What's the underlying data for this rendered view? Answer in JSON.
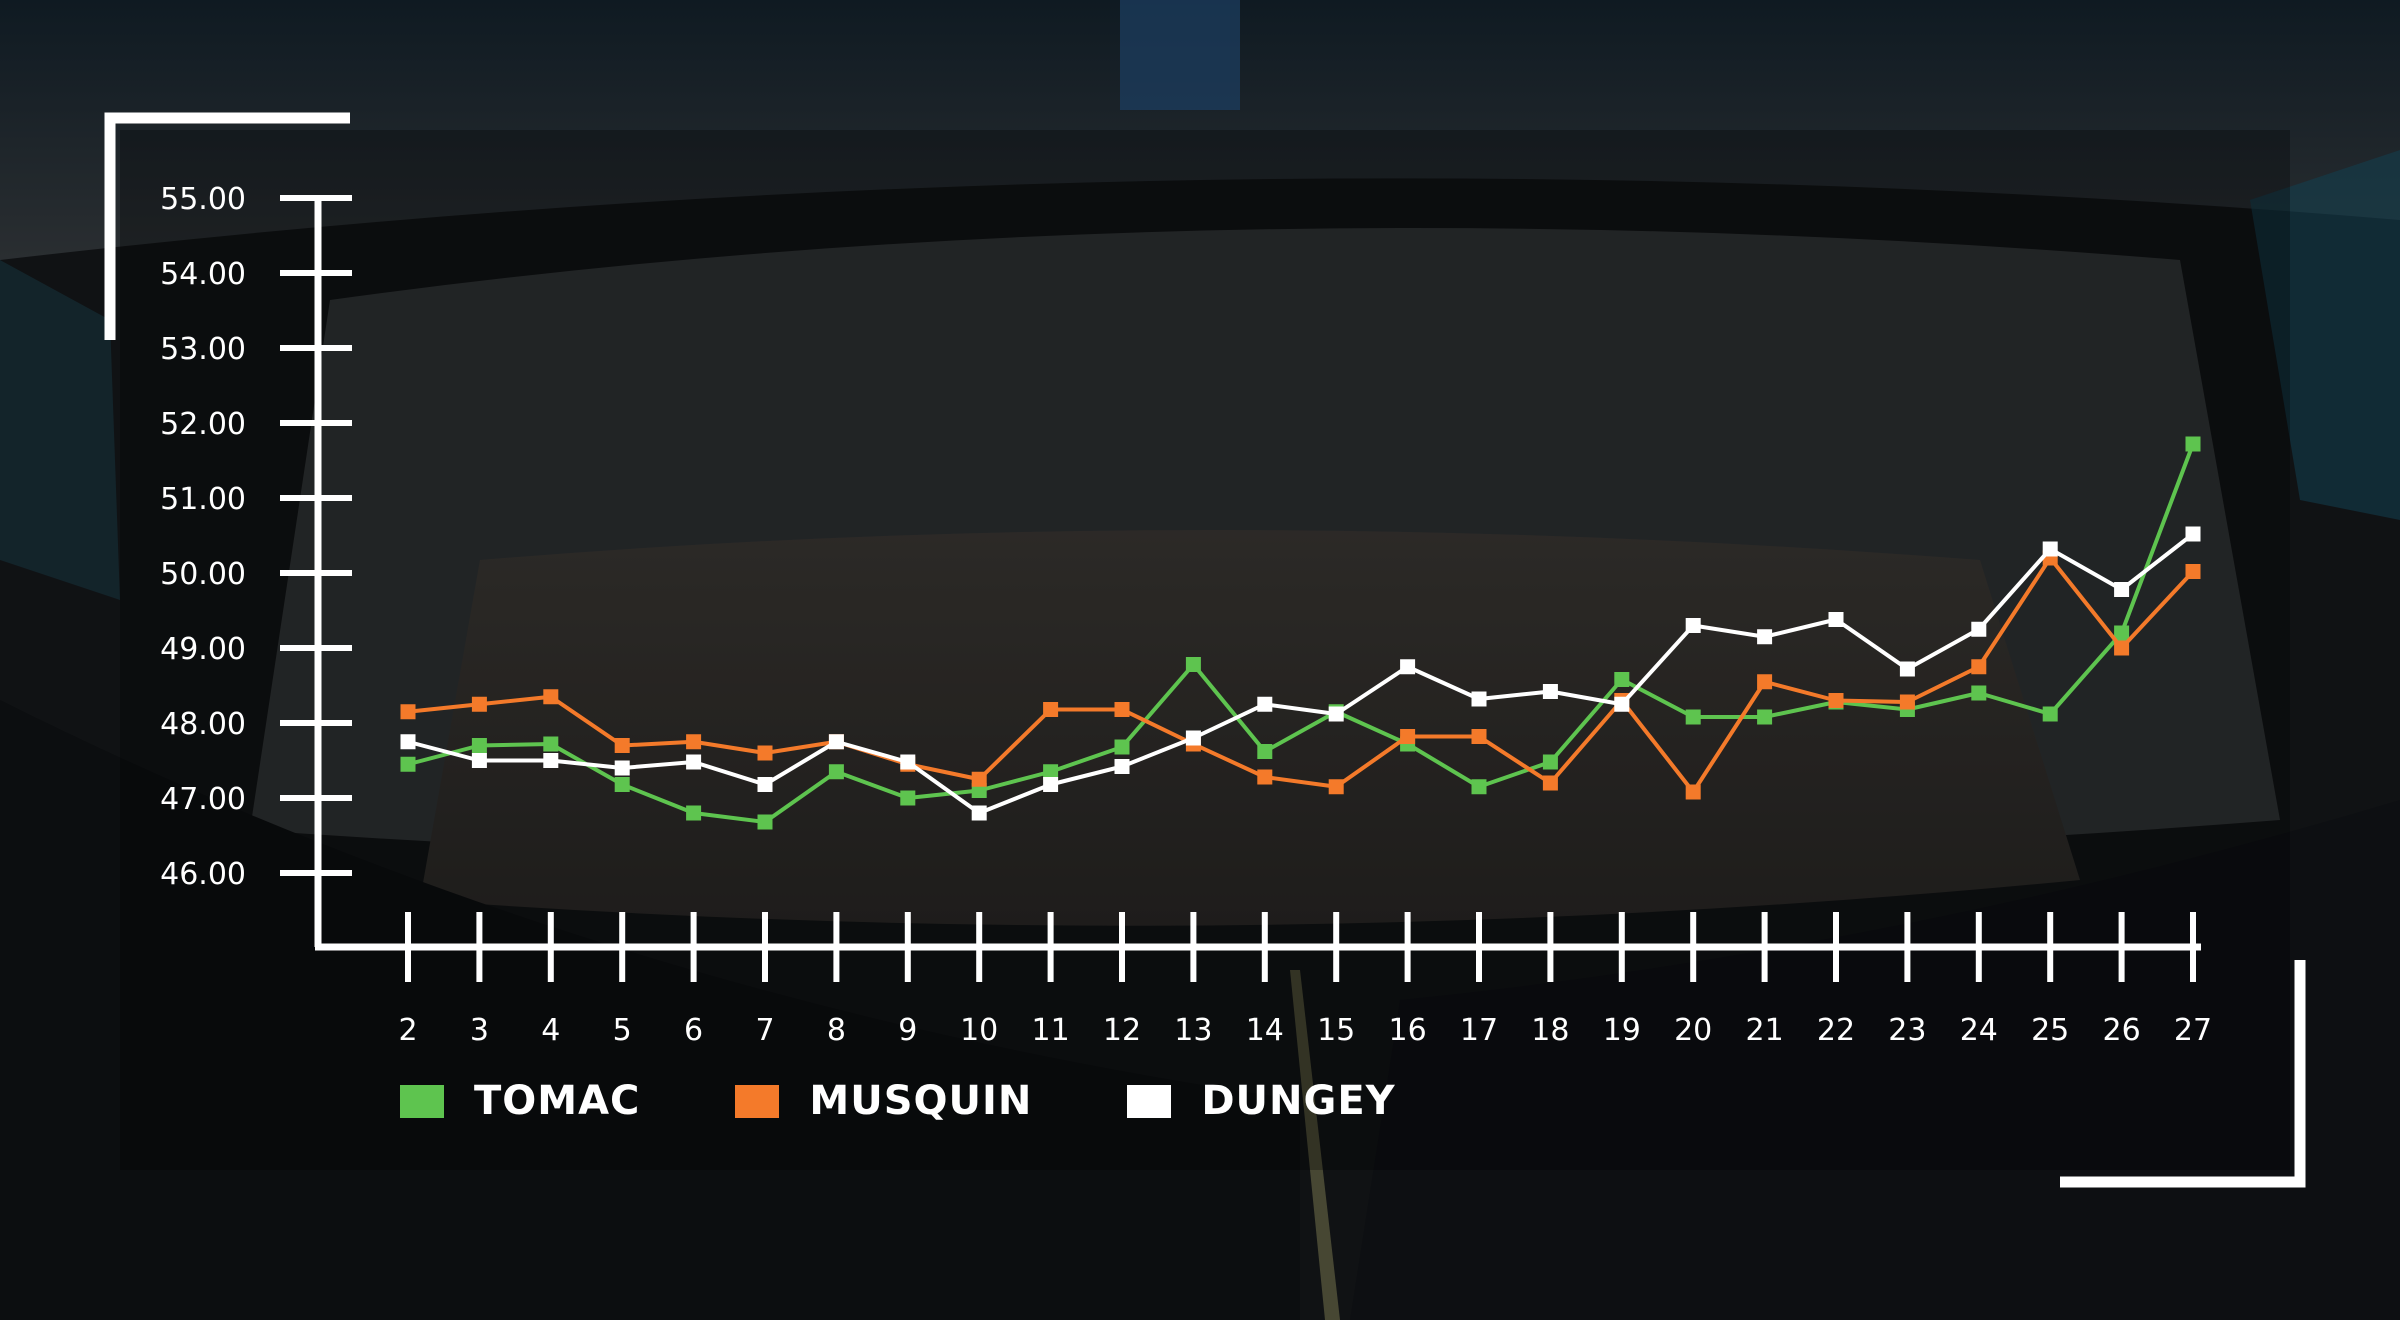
{
  "colors": {
    "tomac": "#5ec44f",
    "musquin": "#f47a2a",
    "dungey": "#ffffff",
    "axis": "#ffffff"
  },
  "legend": [
    {
      "label": "TOMAC",
      "color": "#5ec44f"
    },
    {
      "label": "MUSQUIN",
      "color": "#f47a2a"
    },
    {
      "label": "DUNGEY",
      "color": "#ffffff"
    }
  ],
  "chart_data": {
    "type": "line",
    "title": "",
    "xlabel": "",
    "ylabel": "",
    "x": [
      2,
      3,
      4,
      5,
      6,
      7,
      8,
      9,
      10,
      11,
      12,
      13,
      14,
      15,
      16,
      17,
      18,
      19,
      20,
      21,
      22,
      23,
      24,
      25,
      26,
      27
    ],
    "y_ticks": [
      "46.00",
      "47.00",
      "48.00",
      "49.00",
      "50.00",
      "51.00",
      "52.00",
      "53.00",
      "54.00",
      "55.00"
    ],
    "ylim": [
      45,
      55
    ],
    "grid": false,
    "legend_position": "bottom-left",
    "series": [
      {
        "name": "TOMAC",
        "color": "#5ec44f",
        "values": [
          47.45,
          47.7,
          47.72,
          47.18,
          46.8,
          46.68,
          47.35,
          47.0,
          47.1,
          47.35,
          47.68,
          48.78,
          47.62,
          48.15,
          47.72,
          47.15,
          47.48,
          48.58,
          48.08,
          48.08,
          48.28,
          48.18,
          48.4,
          48.12,
          49.2,
          51.72
        ]
      },
      {
        "name": "MUSQUIN",
        "color": "#f47a2a",
        "values": [
          48.15,
          48.25,
          48.35,
          47.7,
          47.75,
          47.6,
          47.75,
          47.45,
          47.25,
          48.18,
          48.18,
          47.72,
          47.28,
          47.15,
          47.82,
          47.82,
          47.2,
          48.3,
          47.08,
          48.55,
          48.3,
          48.28,
          48.75,
          50.2,
          49.0,
          50.02
        ]
      },
      {
        "name": "DUNGEY",
        "color": "#ffffff",
        "values": [
          47.75,
          47.5,
          47.5,
          47.4,
          47.48,
          47.18,
          47.75,
          47.48,
          46.8,
          47.18,
          47.42,
          47.8,
          48.25,
          48.12,
          48.75,
          48.32,
          48.42,
          48.25,
          49.3,
          49.15,
          49.38,
          48.72,
          49.25,
          50.32,
          49.78,
          50.52
        ]
      }
    ]
  }
}
